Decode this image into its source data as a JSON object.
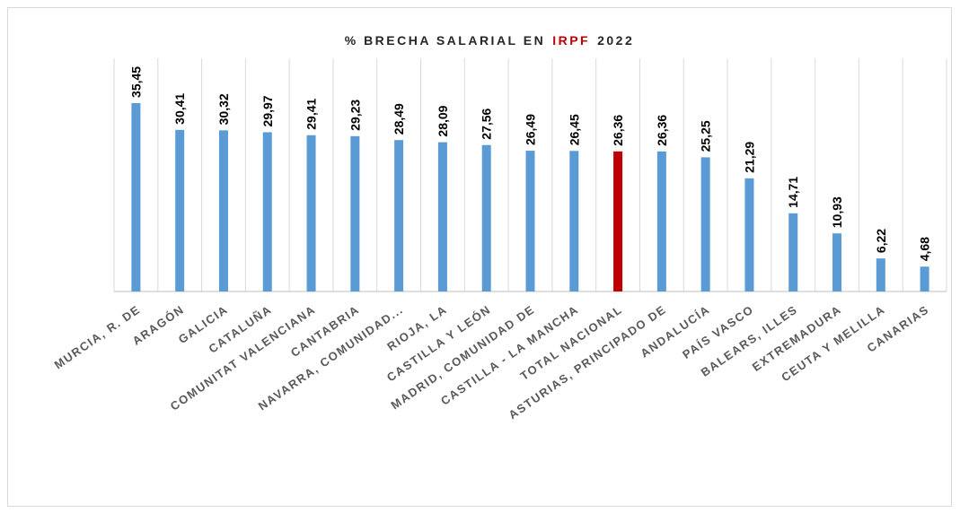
{
  "chart_data": {
    "type": "bar",
    "title_parts": [
      {
        "text": "% BRECHA SALARIAL EN",
        "color": "#262626"
      },
      {
        "text": "IRPF",
        "color": "#c00000"
      },
      {
        "text": "2022",
        "color": "#262626"
      }
    ],
    "categories": [
      "MURCIA, R. DE",
      "ARAGÓN",
      "GALICIA",
      "CATALUÑA",
      "COMUNITAT VALENCIANA",
      "CANTABRIA",
      "NAVARRA, COMUNIDAD...",
      "RIOJA, LA",
      "CASTILLA Y LEÓN",
      "MADRID, COMUNIDAD DE",
      "CASTILLA - LA MANCHA",
      "TOTAL NACIONAL",
      "ASTURIAS, PRINCIPADO DE",
      "ANDALUCÍA",
      "PAÍS VASCO",
      "BALEARS, ILLES",
      "EXTREMADURA",
      "CEUTA Y MELILLA",
      "CANARIAS"
    ],
    "values": [
      35.45,
      30.41,
      30.32,
      29.97,
      29.41,
      29.23,
      28.49,
      28.09,
      27.56,
      26.49,
      26.45,
      26.36,
      26.36,
      25.25,
      21.29,
      14.71,
      10.93,
      6.22,
      4.68
    ],
    "value_labels": [
      "35,45",
      "30,41",
      "30,32",
      "29,97",
      "29,41",
      "29,23",
      "28,49",
      "28,09",
      "27,56",
      "26,49",
      "26,45",
      "26,36",
      "26,36",
      "25,25",
      "21,29",
      "14,71",
      "10,93",
      "6,22",
      "4,68"
    ],
    "colors": [
      "#5b9bd5",
      "#5b9bd5",
      "#5b9bd5",
      "#5b9bd5",
      "#5b9bd5",
      "#5b9bd5",
      "#5b9bd5",
      "#5b9bd5",
      "#5b9bd5",
      "#5b9bd5",
      "#5b9bd5",
      "#c00000",
      "#5b9bd5",
      "#5b9bd5",
      "#5b9bd5",
      "#5b9bd5",
      "#5b9bd5",
      "#5b9bd5",
      "#5b9bd5"
    ],
    "ylim": [
      0,
      40
    ],
    "grid": true
  }
}
